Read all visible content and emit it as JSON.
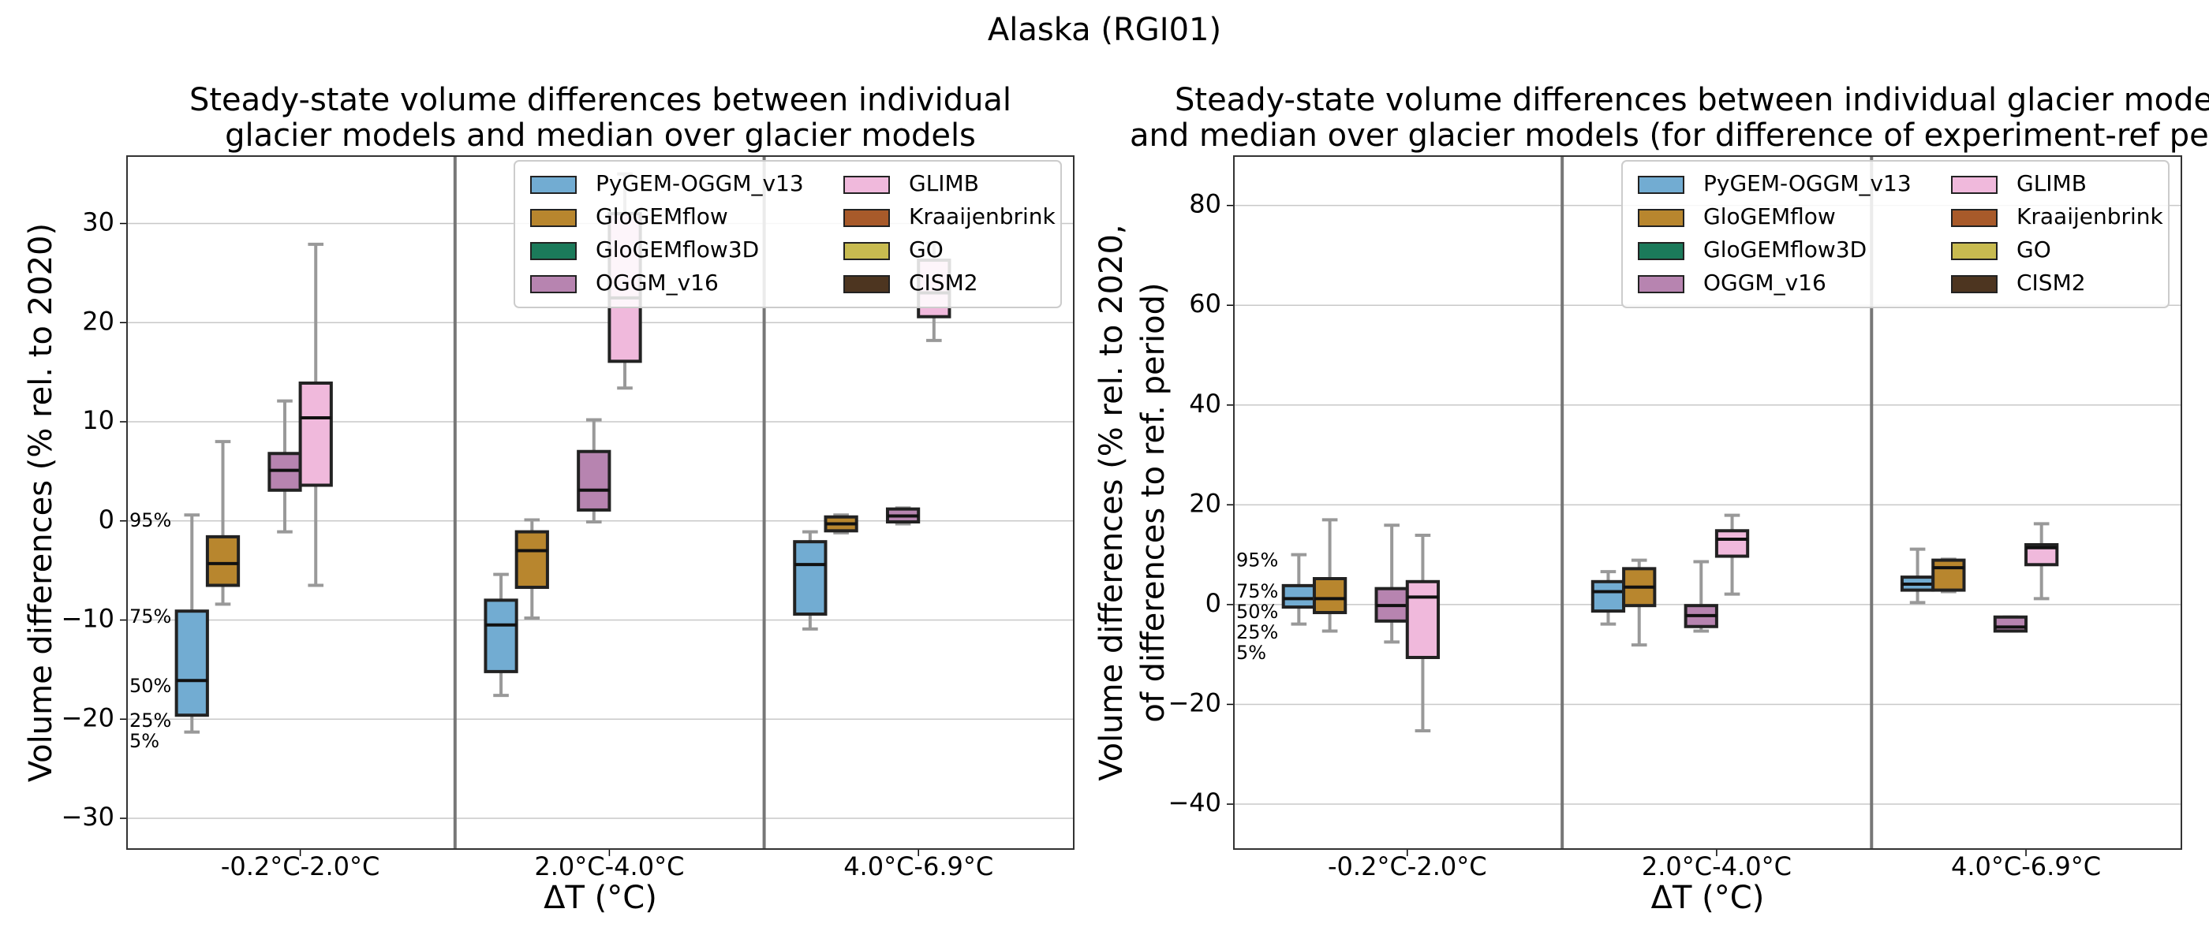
{
  "figure_title": "Alaska (RGI01)",
  "chart_data": [
    {
      "type": "box",
      "title": [
        "Steady-state volume differences between individual",
        "glacier models and median over glacier models"
      ],
      "xlabel": "ΔT (°C)",
      "ylabel": [
        "Volume differences (% rel. to 2020)"
      ],
      "categories": [
        "-0.2°C-2.0°C",
        "2.0°C-4.0°C",
        "4.0°C-6.9°C"
      ],
      "ylim": [
        -33.1,
        36.8
      ],
      "yticks": [
        {
          "value": -30,
          "label": "−30"
        },
        {
          "value": -20,
          "label": "−20"
        },
        {
          "value": -10,
          "label": "−10"
        },
        0,
        10,
        20,
        30
      ],
      "grid": true,
      "legend": "upper right",
      "percentile_labels": [
        "95%",
        "75%",
        "50%",
        "25%",
        "5%"
      ],
      "series": [
        {
          "name": "PyGEM-OGGM_v13",
          "color": "#72acd2",
          "values": [
            {
              "p5": -21.3,
              "p25": -19.6,
              "p50": -16.1,
              "p75": -9.1,
              "p95": 0.6
            },
            {
              "p5": -17.6,
              "p25": -15.2,
              "p50": -10.5,
              "p75": -8.0,
              "p95": -5.4
            },
            {
              "p5": -10.9,
              "p25": -9.4,
              "p50": -4.4,
              "p75": -2.1,
              "p95": -1.1
            }
          ]
        },
        {
          "name": "GloGEMflow",
          "color": "#b8862e",
          "values": [
            {
              "p5": -8.4,
              "p25": -6.5,
              "p50": -4.3,
              "p75": -1.6,
              "p95": 8.0
            },
            {
              "p5": -9.8,
              "p25": -6.7,
              "p50": -3.0,
              "p75": -1.1,
              "p95": 0.1
            },
            {
              "p5": -1.2,
              "p25": -1.0,
              "p50": -0.3,
              "p75": 0.4,
              "p95": 0.6
            }
          ]
        },
        {
          "name": "GloGEMflow3D",
          "color": "#1b7a5a",
          "values": [
            null,
            null,
            null
          ]
        },
        {
          "name": "OGGM_v16",
          "color": "#b784b0",
          "values": [
            {
              "p5": -1.1,
              "p25": 3.1,
              "p50": 5.1,
              "p75": 6.8,
              "p95": 12.1
            },
            {
              "p5": -0.1,
              "p25": 1.1,
              "p50": 3.1,
              "p75": 7.0,
              "p95": 10.2
            },
            {
              "p5": -0.3,
              "p25": -0.1,
              "p50": 0.5,
              "p75": 1.2,
              "p95": 1.3
            }
          ]
        },
        {
          "name": "GLIMB",
          "color": "#f0b9dc",
          "values": [
            {
              "p5": -6.5,
              "p25": 3.6,
              "p50": 10.4,
              "p75": 13.9,
              "p95": 27.9
            },
            {
              "p5": 13.4,
              "p25": 16.1,
              "p50": 22.5,
              "p75": 31,
              "p95": 35
            },
            {
              "p5": 18.2,
              "p25": 20.6,
              "p50": 23.0,
              "p75": 26.3,
              "p95": 28
            }
          ]
        },
        {
          "name": "Kraaijenbrink",
          "color": "#a85a2a",
          "values": [
            null,
            null,
            null
          ]
        },
        {
          "name": "GO",
          "color": "#c8bb50",
          "values": [
            null,
            null,
            null
          ]
        },
        {
          "name": "CISM2",
          "color": "#4d3520",
          "values": [
            null,
            null,
            null
          ]
        }
      ]
    },
    {
      "type": "box",
      "title": [
        "Steady-state volume differences between individual glacier mode",
        "and median over glacier models (for difference of experiment-ref pe"
      ],
      "xlabel": "ΔT (°C)",
      "ylabel": [
        "Volume differences (% rel. to 2020,",
        "of differences to ref. period)"
      ],
      "categories": [
        "-0.2°C-2.0°C",
        "2.0°C-4.0°C",
        "4.0°C-6.9°C"
      ],
      "ylim": [
        -49.0,
        89.9
      ],
      "yticks": [
        {
          "value": -40,
          "label": "−40"
        },
        {
          "value": -20,
          "label": "−20"
        },
        0,
        20,
        40,
        60,
        80
      ],
      "grid": true,
      "legend": "upper right",
      "percentile_labels": [
        "95%",
        "75%",
        "50%",
        "25%",
        "5%"
      ],
      "series": [
        {
          "name": "PyGEM-OGGM_v13",
          "color": "#72acd2",
          "values": [
            {
              "p5": -3.9,
              "p25": -0.5,
              "p50": 1.2,
              "p75": 3.8,
              "p95": 10.0
            },
            {
              "p5": -3.9,
              "p25": -1.3,
              "p50": 2.6,
              "p75": 4.6,
              "p95": 6.6
            },
            {
              "p5": 0.4,
              "p25": 2.9,
              "p50": 4.1,
              "p75": 5.5,
              "p95": 11.1
            }
          ]
        },
        {
          "name": "GloGEMflow",
          "color": "#b8862e",
          "values": [
            {
              "p5": -5.3,
              "p25": -1.6,
              "p50": 1.2,
              "p75": 5.2,
              "p95": 17.0
            },
            {
              "p5": -8.1,
              "p25": -0.2,
              "p50": 3.5,
              "p75": 7.2,
              "p95": 8.9
            },
            {
              "p5": 2.6,
              "p25": 2.9,
              "p50": 7.4,
              "p75": 8.9,
              "p95": 9.1
            }
          ]
        },
        {
          "name": "GloGEMflow3D",
          "color": "#1b7a5a",
          "values": [
            null,
            null,
            null
          ]
        },
        {
          "name": "OGGM_v16",
          "color": "#b784b0",
          "values": [
            {
              "p5": -7.5,
              "p25": -3.3,
              "p50": -0.2,
              "p75": 3.2,
              "p95": 15.9
            },
            {
              "p5": -5.3,
              "p25": -4.4,
              "p50": -2.2,
              "p75": -0.2,
              "p95": 8.6
            },
            {
              "p5": -5.3,
              "p25": -5.3,
              "p50": -4.5,
              "p75": -2.5,
              "p95": -2.5
            }
          ]
        },
        {
          "name": "GLIMB",
          "color": "#f0b9dc",
          "values": [
            {
              "p5": -25.3,
              "p25": -10.6,
              "p50": 1.5,
              "p75": 4.6,
              "p95": 13.9
            },
            {
              "p5": 2.1,
              "p25": 9.7,
              "p50": 13.1,
              "p75": 14.8,
              "p95": 17.9
            },
            {
              "p5": 1.2,
              "p25": 8.0,
              "p50": 11.4,
              "p75": 12.0,
              "p95": 16.2
            }
          ]
        },
        {
          "name": "Kraaijenbrink",
          "color": "#a85a2a",
          "values": [
            null,
            null,
            null
          ]
        },
        {
          "name": "GO",
          "color": "#c8bb50",
          "values": [
            null,
            null,
            null
          ]
        },
        {
          "name": "CISM2",
          "color": "#4d3520",
          "values": [
            null,
            null,
            null
          ]
        }
      ]
    }
  ]
}
